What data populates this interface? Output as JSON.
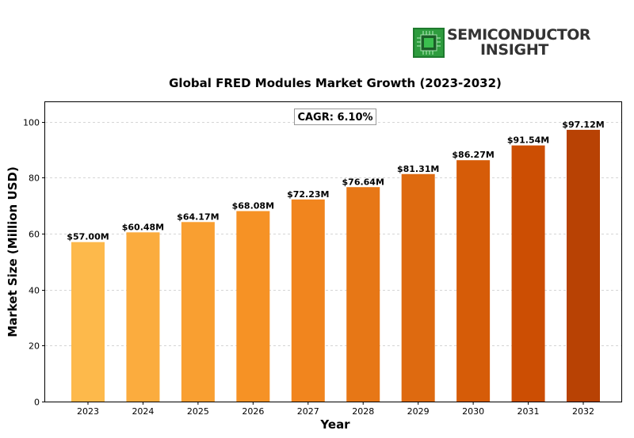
{
  "logo": {
    "line1": "SEMICONDUCTOR",
    "line2": "INSIGHT"
  },
  "chart_data": {
    "type": "bar",
    "title": "Global FRED Modules Market Growth (2023-2032)",
    "xlabel": "Year",
    "ylabel": "Market Size (Million USD)",
    "categories": [
      "2023",
      "2024",
      "2025",
      "2026",
      "2027",
      "2028",
      "2029",
      "2030",
      "2031",
      "2032"
    ],
    "values": [
      57.0,
      60.48,
      64.17,
      68.08,
      72.23,
      76.64,
      81.31,
      86.27,
      91.54,
      97.12
    ],
    "data_labels": [
      "$57.00M",
      "$60.48M",
      "$64.17M",
      "$68.08M",
      "$72.23M",
      "$76.64M",
      "$81.31M",
      "$86.27M",
      "$91.54M",
      "$97.12M"
    ],
    "colors": [
      "#fdb94b",
      "#fbac3e",
      "#f99f31",
      "#f69225",
      "#f1851e",
      "#e77716",
      "#de6a10",
      "#d65c08",
      "#cc4e03",
      "#b84204"
    ],
    "ylim": [
      0,
      107
    ],
    "yticks": [
      0,
      20,
      40,
      60,
      80,
      100
    ],
    "grid": true,
    "annotation": "CAGR: 6.10%"
  }
}
